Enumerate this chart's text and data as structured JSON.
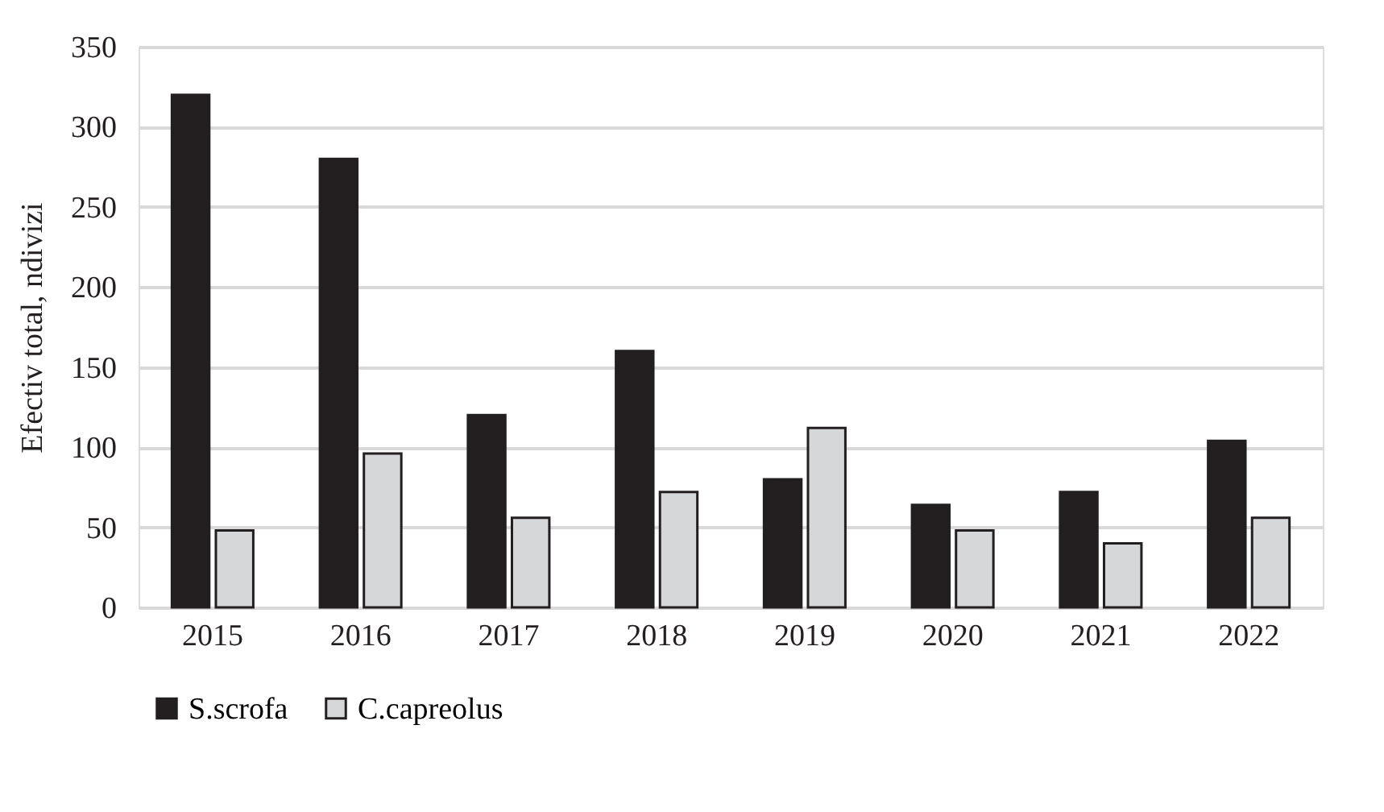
{
  "chart_data": {
    "type": "bar",
    "ylabel": "Efectiv total, ndivizi",
    "categories": [
      "2015",
      "2016",
      "2017",
      "2018",
      "2019",
      "2020",
      "2021",
      "2022"
    ],
    "series": [
      {
        "name": "S.scrofa",
        "color": "#231f20",
        "values": [
          320,
          280,
          120,
          160,
          80,
          64,
          72,
          104
        ]
      },
      {
        "name": "C.capreolus",
        "color": "#d6d7d9",
        "values": [
          48,
          96,
          56,
          72,
          112,
          48,
          40,
          56
        ]
      }
    ],
    "ylim": [
      0,
      350
    ],
    "yticks": [
      0,
      50,
      100,
      150,
      200,
      250,
      300,
      350
    ],
    "grid": "y",
    "legend": "bottom"
  }
}
